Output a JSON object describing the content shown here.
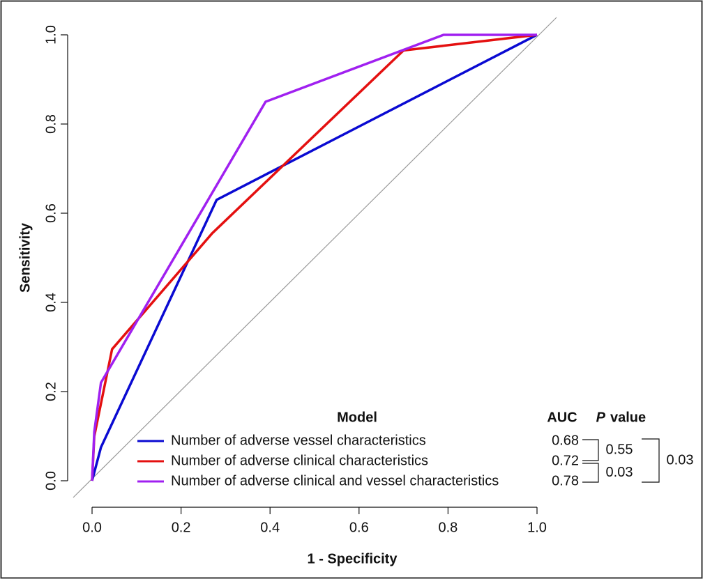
{
  "chart_data": {
    "type": "line",
    "x_label": "1 - Specificity",
    "y_label": "Sensitivity",
    "xlim": [
      0,
      1
    ],
    "ylim": [
      0,
      1
    ],
    "xticks": [
      {
        "value": 0,
        "label": "0.0"
      },
      0.2,
      0.4,
      0.6,
      0.8,
      {
        "value": 1,
        "label": "1.0"
      }
    ],
    "yticks": [
      {
        "value": 0,
        "label": "0.0"
      },
      0.2,
      0.4,
      0.6,
      0.8,
      {
        "value": 1,
        "label": "1.0"
      }
    ],
    "legend_title": "Model",
    "auc_header": "AUC",
    "p_header": {
      "symbol": "P",
      "text": "value"
    },
    "series": [
      {
        "name": "Number of adverse vessel characteristics",
        "color": "#0a0ad2",
        "auc": 0.68,
        "x": [
          0,
          0.02,
          0.28,
          1
        ],
        "values": [
          0,
          0.075,
          0.63,
          1
        ]
      },
      {
        "name": "Number of adverse clinical characteristics",
        "color": "#e41010",
        "auc": 0.72,
        "x": [
          0,
          0.005,
          0.045,
          0.27,
          0.7,
          1
        ],
        "values": [
          0,
          0.1,
          0.295,
          0.555,
          0.965,
          1
        ]
      },
      {
        "name": "Number of adverse clinical and vessel characteristics",
        "color": "#a020f0",
        "auc": 0.78,
        "x": [
          0,
          0.005,
          0.02,
          0.39,
          0.79,
          1
        ],
        "values": [
          0,
          0.11,
          0.22,
          0.85,
          1,
          1
        ]
      }
    ],
    "p_values": [
      0.55,
      0.03,
      0.03
    ]
  }
}
